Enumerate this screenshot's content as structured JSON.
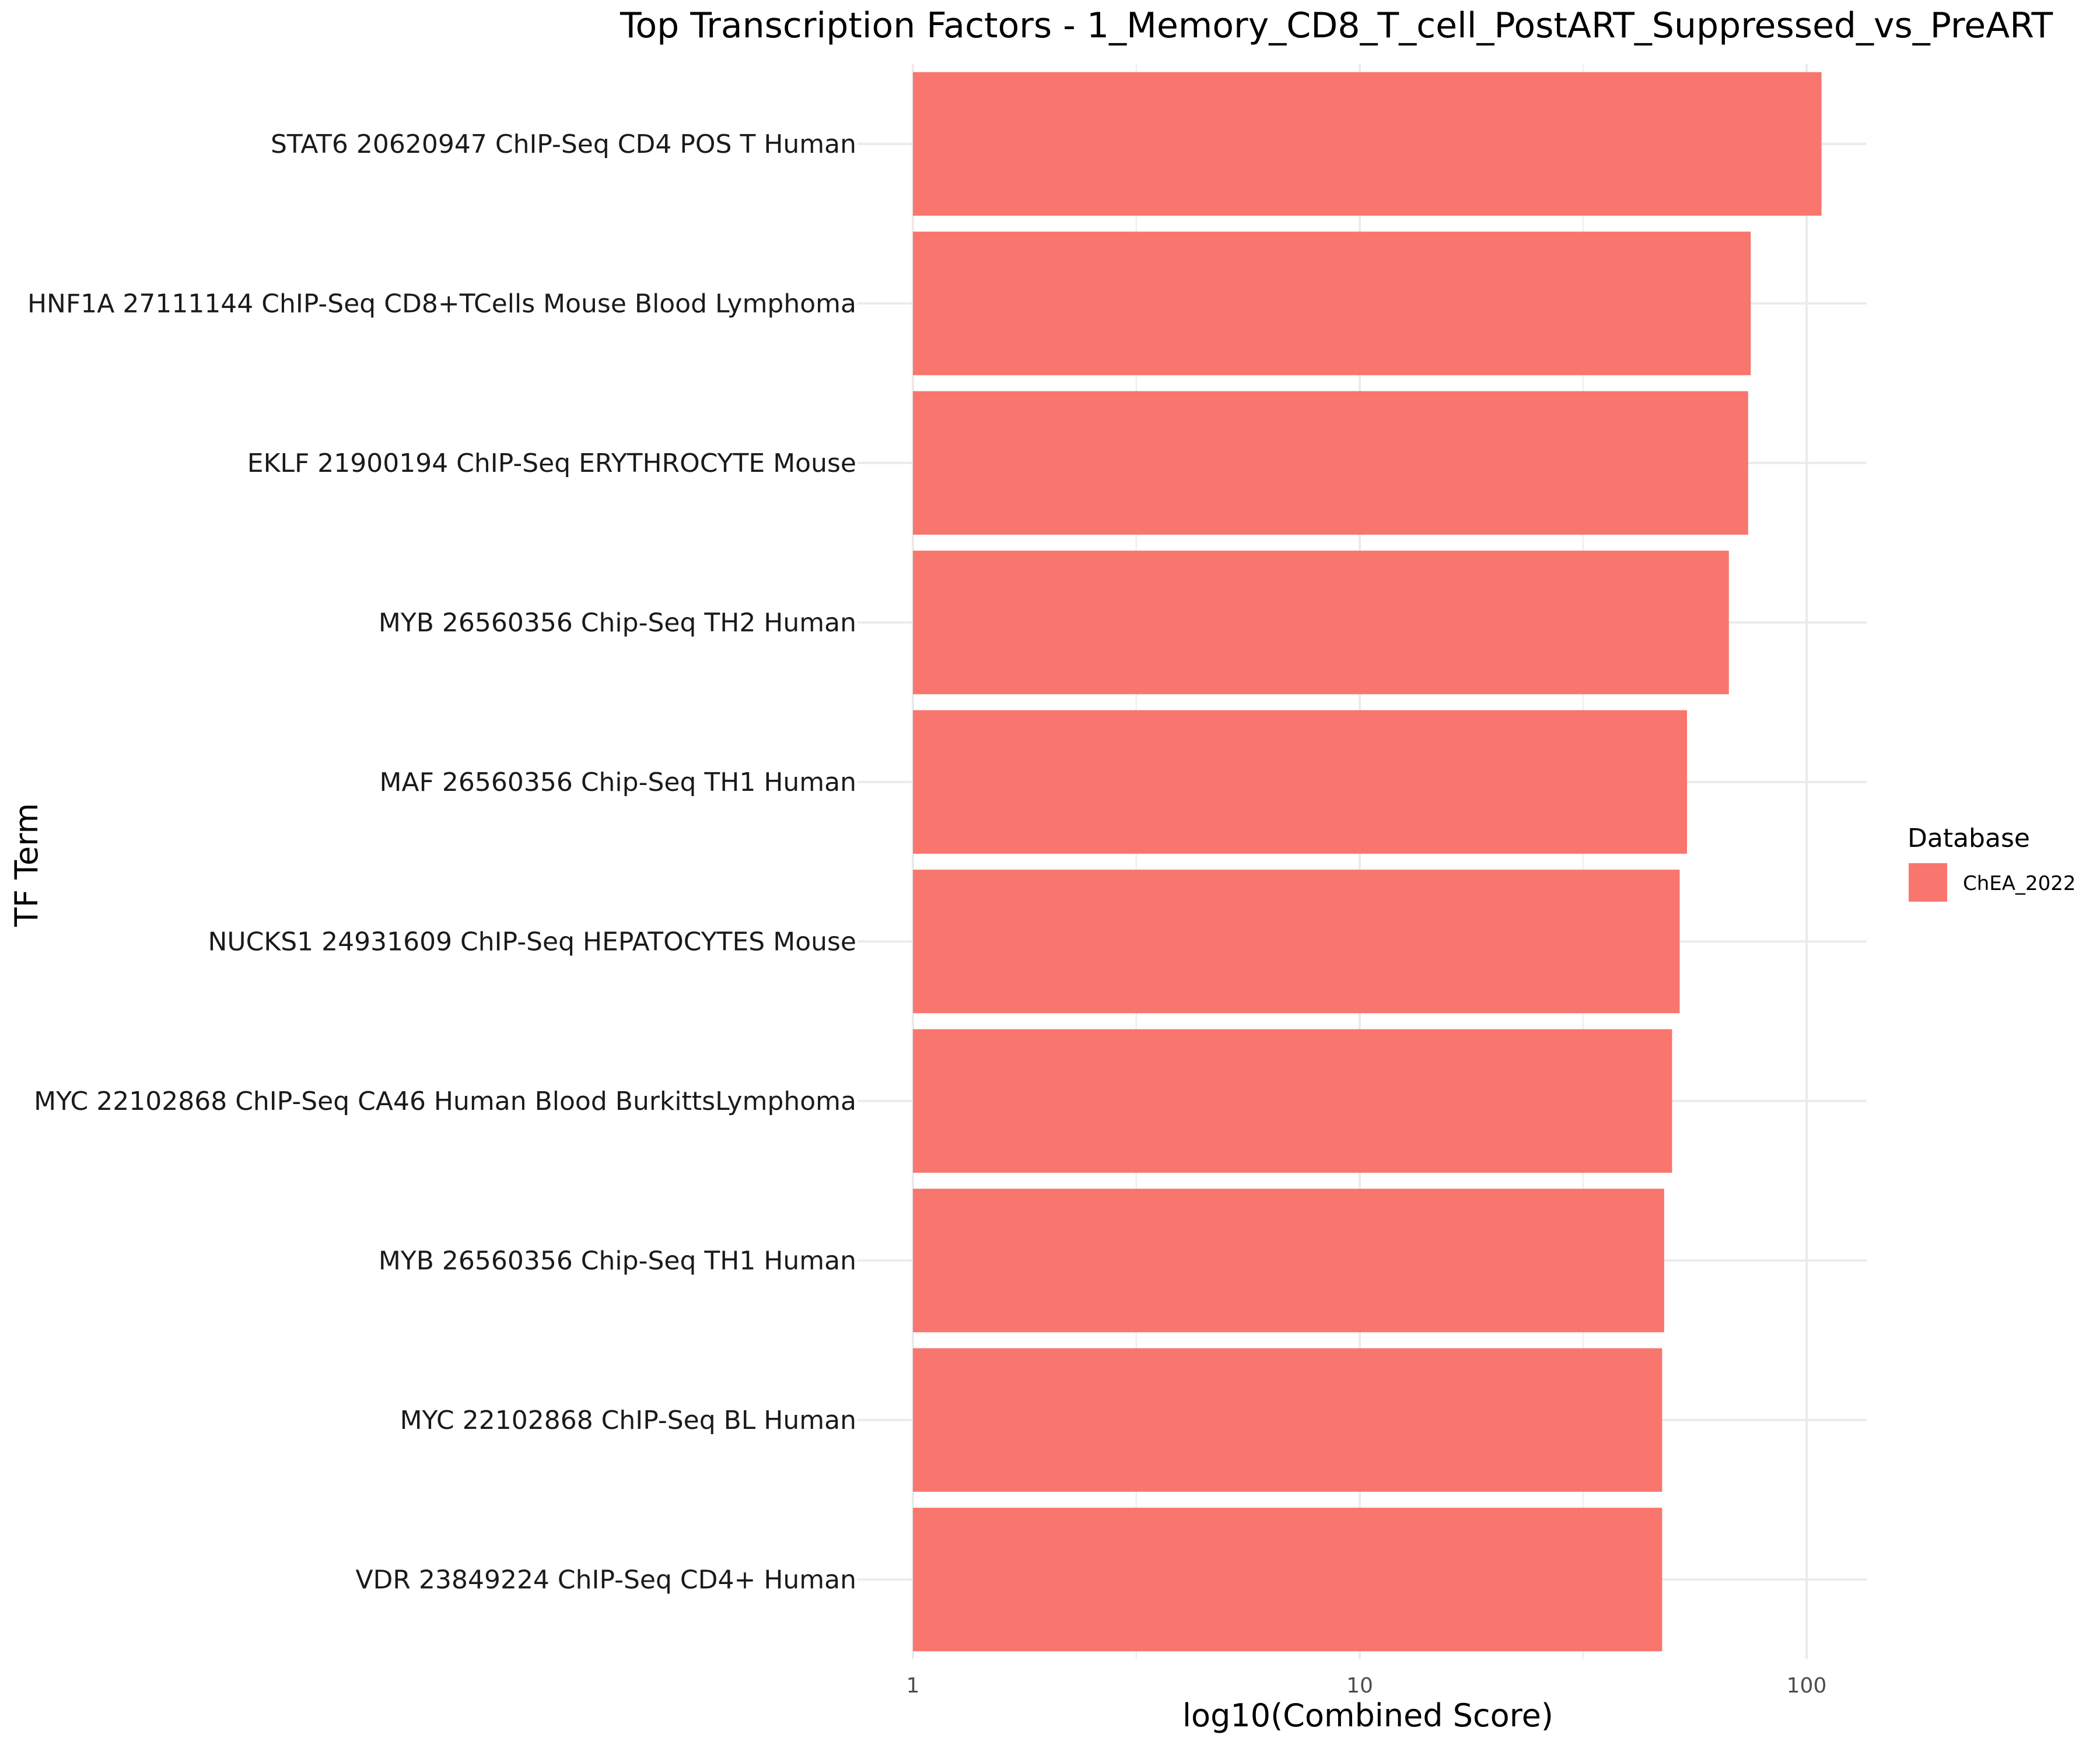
{
  "chart_data": {
    "type": "bar",
    "orientation": "horizontal",
    "title": "Top Transcription Factors - 1_Memory_CD8_T_cell_PostART_Suppressed_vs_PreART",
    "xlabel": "log10(Combined Score)",
    "ylabel": "TF Term",
    "x_scale": "log10",
    "xlim": [
      1,
      130
    ],
    "x_ticks": [
      1,
      10,
      100
    ],
    "x_tick_labels": [
      "1",
      "10",
      "100"
    ],
    "x_minor_ticks": [
      3.16,
      31.6
    ],
    "grid": true,
    "legend": {
      "title": "Database",
      "position": "right",
      "entries": [
        {
          "label": "ChEA_2022",
          "color": "#F8766D"
        }
      ]
    },
    "categories": [
      "STAT6 20620947 ChIP-Seq CD4 POS T Human",
      "HNF1A 27111144 ChIP-Seq CD8+TCells Mouse Blood Lymphoma",
      "EKLF 21900194 ChIP-Seq ERYTHROCYTE Mouse",
      "MYB 26560356 Chip-Seq TH2 Human",
      "MAF 26560356 Chip-Seq TH1 Human",
      "NUCKS1 24931609 ChIP-Seq HEPATOCYTES Mouse",
      "MYC 22102868 ChIP-Seq CA46 Human Blood BurkittsLymphoma",
      "MYB 26560356 Chip-Seq TH1 Human",
      "MYC 22102868 ChIP-Seq BL Human",
      "VDR 23849224 ChIP-Seq CD4+ Human"
    ],
    "values": [
      108,
      75,
      74,
      67,
      54,
      52,
      50,
      48,
      47.5,
      47.5
    ],
    "series": [
      {
        "name": "ChEA_2022",
        "color": "#F8766D"
      }
    ]
  }
}
